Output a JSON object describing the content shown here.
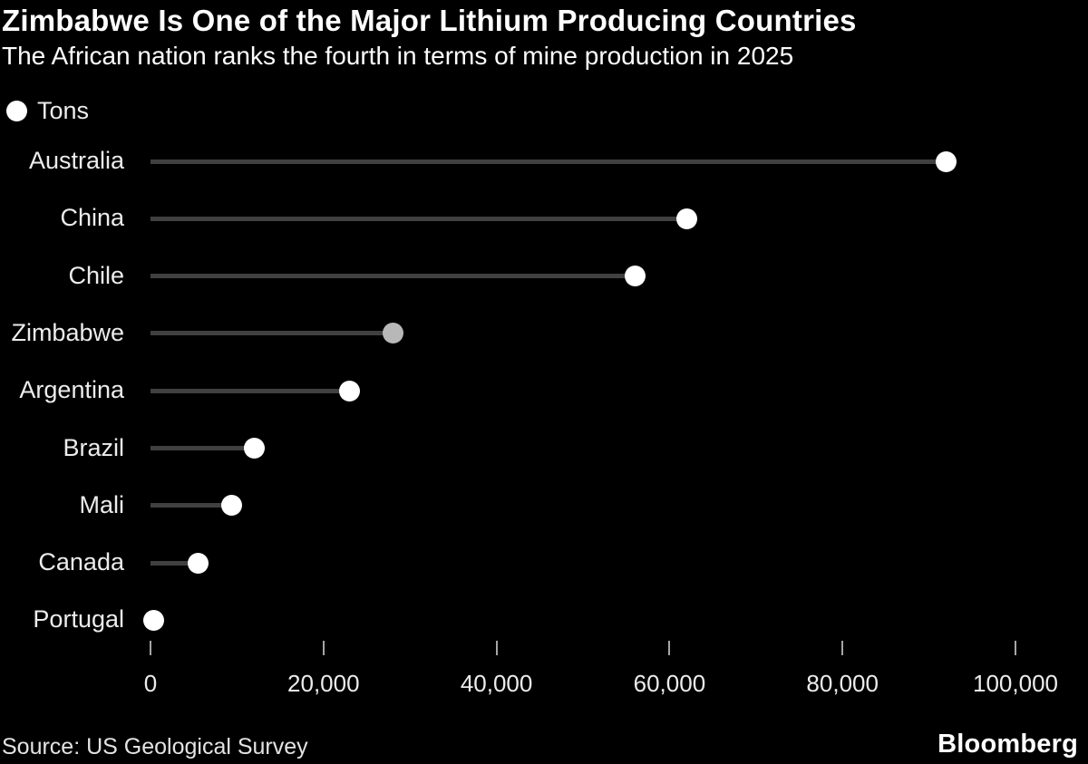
{
  "header": {
    "title": "Zimbabwe Is One of the Major Lithium Producing Countries",
    "subtitle": "The African nation ranks the fourth in terms of mine production in 2025"
  },
  "legend": {
    "label": "Tons",
    "marker": "circle"
  },
  "footer": {
    "source": "Source: US Geological Survey",
    "brand": "Bloomberg"
  },
  "colors": {
    "background": "#000000",
    "line": "#404040",
    "dot": "#ffffff",
    "highlight_dot": "#b8b8b8",
    "tick": "#a6a6a6",
    "text": "#ececec"
  },
  "chart_data": {
    "type": "bar",
    "style": "lollipop-dot",
    "orientation": "horizontal",
    "title": "Zimbabwe Is One of the Major Lithium Producing Countries",
    "subtitle": "The African nation ranks the fourth in terms of mine production in 2025",
    "unit_label": "Tons",
    "categories": [
      "Australia",
      "China",
      "Chile",
      "Zimbabwe",
      "Argentina",
      "Brazil",
      "Mali",
      "Canada",
      "Portugal"
    ],
    "values": [
      92000,
      62000,
      56000,
      28000,
      23000,
      12000,
      9400,
      5500,
      400
    ],
    "highlight_category": "Zimbabwe",
    "xlabel": "",
    "ylabel": "",
    "xlim": [
      0,
      100000
    ],
    "x_ticks": [
      {
        "value": 0,
        "label": "0"
      },
      {
        "value": 20000,
        "label": "20,000"
      },
      {
        "value": 40000,
        "label": "40,000"
      },
      {
        "value": 60000,
        "label": "60,000"
      },
      {
        "value": 80000,
        "label": "80,000"
      },
      {
        "value": 100000,
        "label": "100,000"
      }
    ],
    "grid": false,
    "legend_position": "top-left",
    "source": "US Geological Survey"
  }
}
